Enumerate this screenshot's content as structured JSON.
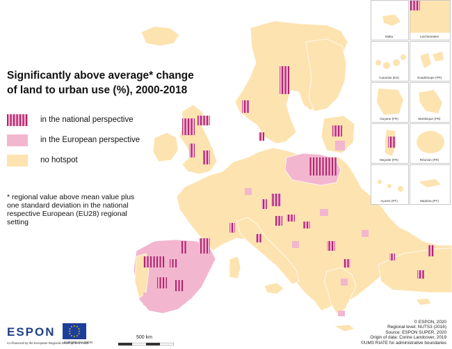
{
  "colors": {
    "sea": "#ffffff",
    "land_no_hotspot": "#fde3b0",
    "european": "#f3b6cf",
    "national": "#b2246f",
    "border": "#ffffff",
    "non_study": "#ececec"
  },
  "title": {
    "line1": "Significantly above average* change",
    "line2": "of land to urban use (%), 2000-2018"
  },
  "legend": [
    {
      "key": "national",
      "label": "in the national perspective"
    },
    {
      "key": "european",
      "label": "in the European perspective"
    },
    {
      "key": "none",
      "label": "no hotspot"
    }
  ],
  "footnote": {
    "line1": "* regional value above mean value plus",
    "line2": "one standard deviation in the national",
    "line3": "respective European (EU28) regional",
    "line4": "setting"
  },
  "insets": [
    {
      "label": "Malta"
    },
    {
      "label": "Liechtenstein"
    },
    {
      "label": "Canarias (ES)"
    },
    {
      "label": "Guadeloupe (FR)"
    },
    {
      "label": "Guyane (FR)"
    },
    {
      "label": "Martinique (FR)"
    },
    {
      "label": "Mayotte (FR)"
    },
    {
      "label": "Réunion (FR)"
    },
    {
      "label": "Açores (PT)"
    },
    {
      "label": "Madeira (PT)"
    }
  ],
  "logos": {
    "espon": "ESPON",
    "cofinanced": "Co-financed by the European Regional Development Fund",
    "eu": "EUROPEAN UNION"
  },
  "scale": {
    "label": "500 km"
  },
  "credits": {
    "line1": "© ESPON, 2020",
    "line2": "Regional level: NUTS3 (2016)",
    "line3": "Source: ESPON SUPER, 2020",
    "line4": "Origin of data: Corine Landcover, 2019",
    "line5": "©UMS RIATE for administrative boundaries"
  }
}
